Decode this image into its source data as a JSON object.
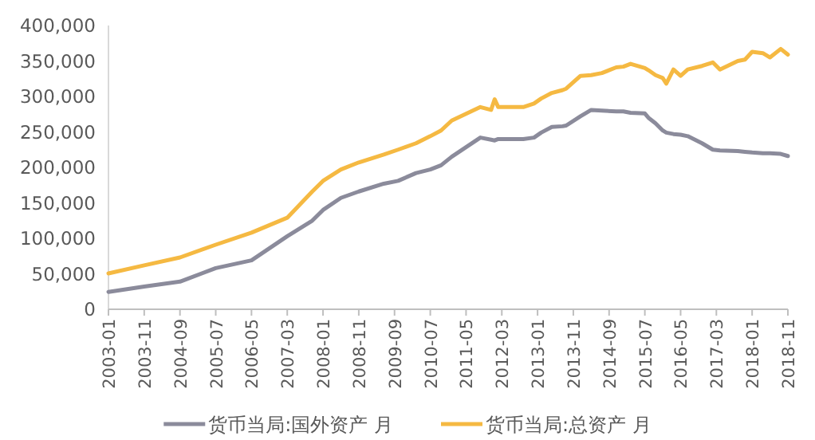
{
  "chart_data": {
    "type": "line",
    "x": [
      "2003-01",
      "2003-11",
      "2004-09",
      "2005-07",
      "2006-05",
      "2007-03",
      "2007-10",
      "2008-01",
      "2008-06",
      "2008-11",
      "2009-06",
      "2009-10",
      "2010-03",
      "2010-07",
      "2010-10",
      "2011-01",
      "2011-09",
      "2011-12",
      "2012-01",
      "2012-02",
      "2012-09",
      "2012-12",
      "2013-02",
      "2013-05",
      "2013-08",
      "2013-09",
      "2014-01",
      "2014-04",
      "2014-07",
      "2014-11",
      "2015-01",
      "2015-03",
      "2015-07",
      "2015-08",
      "2015-10",
      "2015-12",
      "2016-01",
      "2016-03",
      "2016-05",
      "2016-07",
      "2016-11",
      "2017-02",
      "2017-04",
      "2017-09",
      "2017-11",
      "2018-01",
      "2018-04",
      "2018-06",
      "2018-09",
      "2018-11"
    ],
    "series": [
      {
        "name": "货币当局:国外资产 月",
        "color": "#8b8b9b",
        "values": [
          24500,
          32000,
          39000,
          58000,
          69000,
          103000,
          125000,
          140000,
          157000,
          166000,
          177000,
          181000,
          192000,
          197000,
          203000,
          215000,
          242000,
          239000,
          238000,
          240000,
          240000,
          242000,
          249000,
          257000,
          258000,
          259000,
          272000,
          281000,
          280000,
          279000,
          279000,
          277000,
          276000,
          270000,
          262000,
          252000,
          249000,
          247000,
          246000,
          244000,
          234000,
          225000,
          224000,
          223000,
          222000,
          221000,
          220000,
          220000,
          219000,
          216000
        ]
      },
      {
        "name": "货币当局:总资产 月",
        "color": "#f5b942",
        "values": [
          50500,
          62000,
          73000,
          91000,
          108000,
          129000,
          166000,
          181000,
          197000,
          207000,
          218000,
          225000,
          234000,
          244000,
          252000,
          266000,
          285000,
          281000,
          296000,
          285000,
          285000,
          290000,
          297000,
          305000,
          309000,
          311000,
          329000,
          330000,
          333000,
          341000,
          342000,
          346000,
          340000,
          337000,
          330000,
          326000,
          318000,
          338000,
          329000,
          338000,
          343000,
          348000,
          338000,
          350000,
          352000,
          363000,
          361000,
          355000,
          367000,
          359000
        ]
      }
    ],
    "xlim": [
      "2003-01",
      "2018-11"
    ],
    "xticks": [
      "2003-01",
      "2003-11",
      "2004-09",
      "2005-07",
      "2006-05",
      "2007-03",
      "2008-01",
      "2008-11",
      "2009-09",
      "2010-07",
      "2011-05",
      "2012-03",
      "2013-01",
      "2013-11",
      "2014-09",
      "2015-07",
      "2016-05",
      "2017-03",
      "2018-01",
      "2018-11"
    ],
    "ylim": [
      0,
      400000
    ],
    "yticks": [
      {
        "value": 0,
        "label": "0"
      },
      {
        "value": 50000,
        "label": "50,000"
      },
      {
        "value": 100000,
        "label": "100,000"
      },
      {
        "value": 150000,
        "label": "150,000"
      },
      {
        "value": 200000,
        "label": "200,000"
      },
      {
        "value": 250000,
        "label": "250,000"
      },
      {
        "value": 300000,
        "label": "300,000"
      },
      {
        "value": 350000,
        "label": "350,000"
      },
      {
        "value": 400000,
        "label": "400,000"
      }
    ],
    "legend": "bottom"
  }
}
